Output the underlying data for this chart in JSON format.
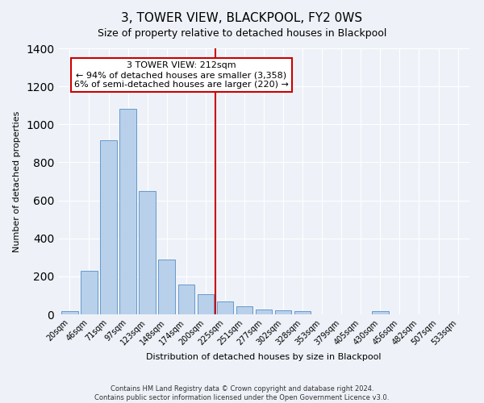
{
  "title": "3, TOWER VIEW, BLACKPOOL, FY2 0WS",
  "subtitle": "Size of property relative to detached houses in Blackpool",
  "xlabel": "Distribution of detached houses by size in Blackpool",
  "ylabel": "Number of detached properties",
  "categories": [
    "20sqm",
    "46sqm",
    "71sqm",
    "97sqm",
    "123sqm",
    "148sqm",
    "174sqm",
    "200sqm",
    "225sqm",
    "251sqm",
    "277sqm",
    "302sqm",
    "328sqm",
    "353sqm",
    "379sqm",
    "405sqm",
    "430sqm",
    "456sqm",
    "482sqm",
    "507sqm",
    "533sqm"
  ],
  "values": [
    15,
    228,
    915,
    1080,
    650,
    290,
    158,
    108,
    70,
    43,
    27,
    20,
    15,
    0,
    0,
    0,
    15,
    0,
    0,
    0,
    0
  ],
  "bar_color": "#b8d0ea",
  "bar_edge_color": "#6699cc",
  "vline_color": "#cc0000",
  "vline_x_index": 7.5,
  "ylim": [
    0,
    1400
  ],
  "yticks": [
    0,
    200,
    400,
    600,
    800,
    1000,
    1200,
    1400
  ],
  "annotation_title": "3 TOWER VIEW: 212sqm",
  "annotation_line1": "← 94% of detached houses are smaller (3,358)",
  "annotation_line2": "6% of semi-detached houses are larger (220) →",
  "annotation_box_color": "#ffffff",
  "annotation_box_edge": "#cc0000",
  "footnote1": "Contains HM Land Registry data © Crown copyright and database right 2024.",
  "footnote2": "Contains public sector information licensed under the Open Government Licence v3.0.",
  "bg_color": "#eef2f8",
  "plot_bg_color": "#eef2f8",
  "title_fontsize": 11,
  "subtitle_fontsize": 9,
  "axis_label_fontsize": 8,
  "tick_fontsize": 7,
  "annot_fontsize": 8,
  "footnote_fontsize": 6
}
